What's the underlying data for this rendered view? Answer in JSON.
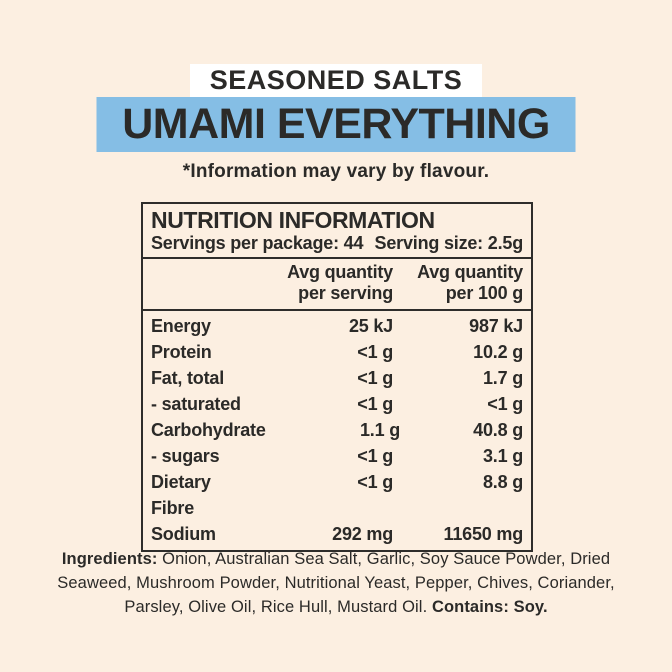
{
  "page": {
    "background": "#FCEFE1",
    "text_color": "#2B2A28",
    "highlight_blue": "#85BEE5",
    "banner_white": "#FFFFFF",
    "border_color": "#2E2D2B"
  },
  "header": {
    "brand": "SEASONED SALTS",
    "product": "UMAMI EVERYTHING",
    "disclaimer": "*Information may vary by flavour."
  },
  "nutrition": {
    "title": "NUTRITION INFORMATION",
    "servings_per_package_label": "Servings per package: 44",
    "serving_size_label": "Serving size: 2.5g",
    "columns": [
      {
        "line1": "Avg quantity",
        "line2": "per serving"
      },
      {
        "line1": "Avg quantity",
        "line2": "per 100 g"
      }
    ],
    "rows": [
      {
        "label": "Energy",
        "per_serving": "25 kJ",
        "per_100g": "987 kJ"
      },
      {
        "label": "Protein",
        "per_serving": "<1 g",
        "per_100g": "10.2 g"
      },
      {
        "label": "Fat, total",
        "per_serving": "<1 g",
        "per_100g": "1.7 g"
      },
      {
        "label": "- saturated",
        "per_serving": "<1 g",
        "per_100g": "<1 g"
      },
      {
        "label": "Carbohydrate",
        "per_serving": "1.1 g",
        "per_100g": "40.8 g"
      },
      {
        "label": "- sugars",
        "per_serving": "<1 g",
        "per_100g": "3.1 g"
      },
      {
        "label": "Dietary Fibre",
        "per_serving": "<1 g",
        "per_100g": "8.8 g"
      },
      {
        "label": "Sodium",
        "per_serving": "292 mg",
        "per_100g": "11650 mg"
      }
    ]
  },
  "ingredients": {
    "label": "Ingredients:",
    "list": " Onion, Australian Sea Salt, Garlic, Soy Sauce Powder, Dried Seaweed, Mushroom Powder, Nutritional Yeast, Pepper, Chives, Coriander, Parsley, Olive Oil, Rice Hull, Mustard Oil. ",
    "contains": "Contains: Soy."
  }
}
